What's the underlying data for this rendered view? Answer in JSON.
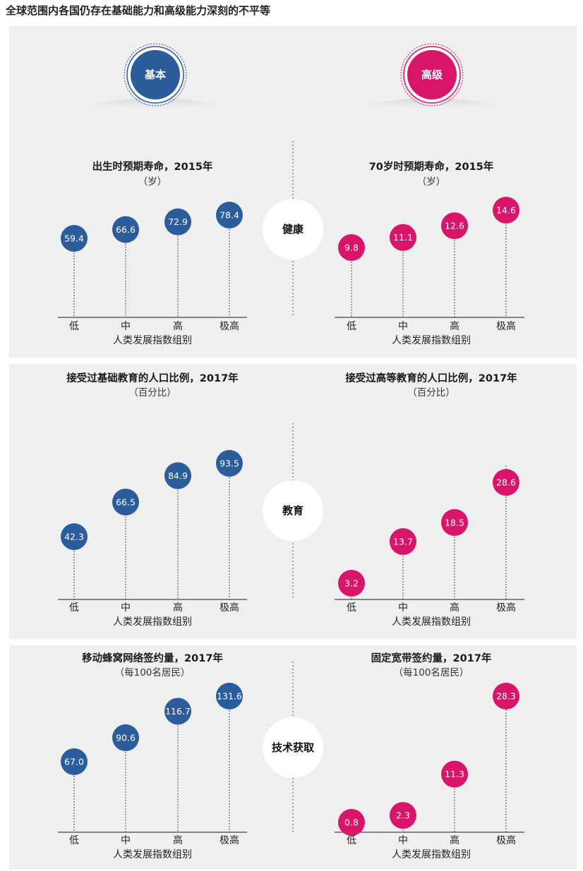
{
  "page_title": "全球范围内各国仍存在基础能力和高级能力深刻的不平等",
  "headers": {
    "basic": "基本",
    "advanced": "高级"
  },
  "colors": {
    "basic": "#2b5c9b",
    "advanced": "#d8156a"
  },
  "categories": [
    "健康",
    "教育",
    "技术获取"
  ],
  "chart_data": [
    {
      "type": "scatter",
      "title": "出生时预期寿命，2015年",
      "unit": "（岁）",
      "xlabel": "人类发展指数组别",
      "x": [
        "低",
        "中",
        "高",
        "极高"
      ],
      "values": [
        59.4,
        66.6,
        72.9,
        78.4
      ]
    },
    {
      "type": "scatter",
      "title": "70岁时预期寿命，2015年",
      "unit": "（岁）",
      "xlabel": "人类发展指数组别",
      "x": [
        "低",
        "中",
        "高",
        "极高"
      ],
      "values": [
        9.8,
        11.1,
        12.6,
        14.6
      ]
    },
    {
      "type": "scatter",
      "title": "接受过基础教育的人口比例，2017年",
      "unit": "（百分比）",
      "xlabel": "人类发展指数组别",
      "x": [
        "低",
        "中",
        "高",
        "极高"
      ],
      "values": [
        42.3,
        66.5,
        84.9,
        93.5
      ]
    },
    {
      "type": "scatter",
      "title": "接受过高等教育的人口比例，2017年",
      "unit": "（百分比）",
      "xlabel": "人类发展指数组别",
      "x": [
        "低",
        "中",
        "高",
        "极高"
      ],
      "values": [
        3.2,
        13.7,
        18.5,
        28.6
      ]
    },
    {
      "type": "scatter",
      "title": "移动蜂窝网络签约量，2017年",
      "unit": "（每100名居民）",
      "xlabel": "人类发展指数组别",
      "x": [
        "低",
        "中",
        "高",
        "极高"
      ],
      "values": [
        67.0,
        90.6,
        116.7,
        131.6
      ]
    },
    {
      "type": "scatter",
      "title": "固定宽带签约量，2017年",
      "unit": "（每100名居民）",
      "xlabel": "人类发展指数组别",
      "x": [
        "低",
        "中",
        "高",
        "极高"
      ],
      "values": [
        0.8,
        2.3,
        11.3,
        28.3
      ]
    }
  ]
}
